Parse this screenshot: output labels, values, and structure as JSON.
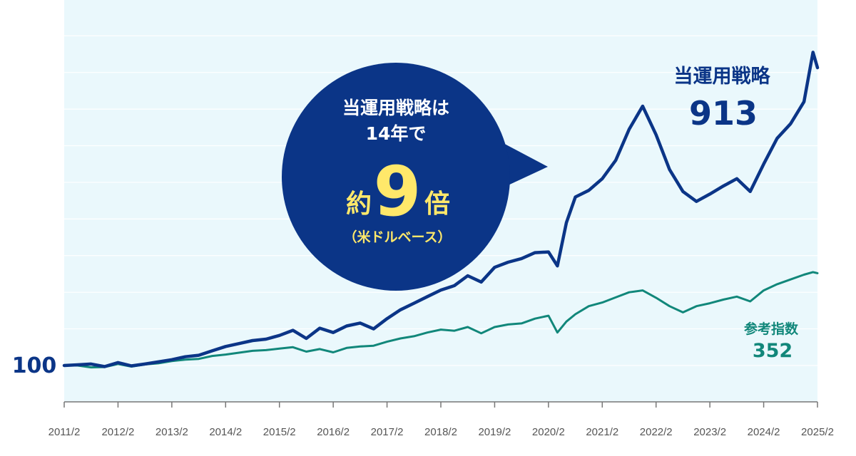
{
  "colors": {
    "background": "#ffffff",
    "plot_background": "#eaf8fc",
    "gridline": "#ffffff",
    "axis": "#777777",
    "strategy": "#0b3587",
    "index": "#11877a",
    "bubble": "#0b3587",
    "bubble_text": "#ffffff",
    "bubble_highlight": "#ffe86a"
  },
  "callout": {
    "line1": "当運用戦略は",
    "line2": "14年で",
    "prefix": "約",
    "number": "9",
    "suffix": "倍",
    "note": "（米ドルベース）"
  },
  "start_label": "100",
  "strategy_label": {
    "name": "当運用戦略",
    "value": "913"
  },
  "index_label": {
    "name": "参考指数",
    "value": "352"
  },
  "chart_data": {
    "type": "line",
    "x_tick_labels": [
      "2011/2",
      "2012/2",
      "2013/2",
      "2014/2",
      "2015/2",
      "2016/2",
      "2017/2",
      "2018/2",
      "2019/2",
      "2020/2",
      "2021/2",
      "2022/2",
      "2023/2",
      "2024/2",
      "2025/2"
    ],
    "xlim": [
      "2011/2",
      "2025/2"
    ],
    "ylim": [
      0,
      1000
    ],
    "y_ticks_labeled": false,
    "grid": true,
    "series": [
      {
        "name": "当運用戦略",
        "color": "#0b3587",
        "points": [
          [
            "2011/2",
            100
          ],
          [
            "2011/5",
            102
          ],
          [
            "2011/8",
            104
          ],
          [
            "2011/11",
            97
          ],
          [
            "2012/2",
            108
          ],
          [
            "2012/5",
            99
          ],
          [
            "2012/8",
            104
          ],
          [
            "2012/11",
            110
          ],
          [
            "2013/2",
            116
          ],
          [
            "2013/5",
            124
          ],
          [
            "2013/8",
            128
          ],
          [
            "2013/11",
            140
          ],
          [
            "2014/2",
            152
          ],
          [
            "2014/5",
            160
          ],
          [
            "2014/8",
            168
          ],
          [
            "2014/11",
            172
          ],
          [
            "2015/2",
            182
          ],
          [
            "2015/5",
            196
          ],
          [
            "2015/8",
            174
          ],
          [
            "2015/11",
            202
          ],
          [
            "2016/2",
            190
          ],
          [
            "2016/5",
            208
          ],
          [
            "2016/8",
            216
          ],
          [
            "2016/11",
            200
          ],
          [
            "2017/2",
            228
          ],
          [
            "2017/5",
            252
          ],
          [
            "2017/8",
            270
          ],
          [
            "2017/11",
            288
          ],
          [
            "2018/2",
            306
          ],
          [
            "2018/5",
            318
          ],
          [
            "2018/8",
            345
          ],
          [
            "2018/11",
            328
          ],
          [
            "2019/2",
            368
          ],
          [
            "2019/5",
            382
          ],
          [
            "2019/8",
            392
          ],
          [
            "2019/11",
            408
          ],
          [
            "2020/2",
            410
          ],
          [
            "2020/4",
            372
          ],
          [
            "2020/6",
            490
          ],
          [
            "2020/8",
            560
          ],
          [
            "2020/11",
            578
          ],
          [
            "2021/2",
            610
          ],
          [
            "2021/5",
            660
          ],
          [
            "2021/8",
            745
          ],
          [
            "2021/11",
            808
          ],
          [
            "2022/2",
            730
          ],
          [
            "2022/5",
            635
          ],
          [
            "2022/8",
            575
          ],
          [
            "2022/11",
            548
          ],
          [
            "2023/2",
            568
          ],
          [
            "2023/5",
            590
          ],
          [
            "2023/8",
            610
          ],
          [
            "2023/11",
            575
          ],
          [
            "2024/2",
            650
          ],
          [
            "2024/5",
            720
          ],
          [
            "2024/8",
            760
          ],
          [
            "2024/11",
            820
          ],
          [
            "2025/1",
            955
          ],
          [
            "2025/2",
            913
          ]
        ]
      },
      {
        "name": "参考指数",
        "color": "#11877a",
        "points": [
          [
            "2011/2",
            100
          ],
          [
            "2011/5",
            100
          ],
          [
            "2011/8",
            95
          ],
          [
            "2011/11",
            96
          ],
          [
            "2012/2",
            104
          ],
          [
            "2012/5",
            97
          ],
          [
            "2012/8",
            103
          ],
          [
            "2012/11",
            106
          ],
          [
            "2013/2",
            112
          ],
          [
            "2013/5",
            116
          ],
          [
            "2013/8",
            118
          ],
          [
            "2013/11",
            126
          ],
          [
            "2014/2",
            130
          ],
          [
            "2014/5",
            135
          ],
          [
            "2014/8",
            140
          ],
          [
            "2014/11",
            142
          ],
          [
            "2015/2",
            146
          ],
          [
            "2015/5",
            150
          ],
          [
            "2015/8",
            138
          ],
          [
            "2015/11",
            145
          ],
          [
            "2016/2",
            136
          ],
          [
            "2016/5",
            148
          ],
          [
            "2016/8",
            152
          ],
          [
            "2016/11",
            154
          ],
          [
            "2017/2",
            165
          ],
          [
            "2017/5",
            174
          ],
          [
            "2017/8",
            180
          ],
          [
            "2017/11",
            190
          ],
          [
            "2018/2",
            198
          ],
          [
            "2018/5",
            195
          ],
          [
            "2018/8",
            205
          ],
          [
            "2018/11",
            188
          ],
          [
            "2019/2",
            205
          ],
          [
            "2019/5",
            212
          ],
          [
            "2019/8",
            215
          ],
          [
            "2019/11",
            228
          ],
          [
            "2020/2",
            236
          ],
          [
            "2020/4",
            190
          ],
          [
            "2020/6",
            220
          ],
          [
            "2020/8",
            240
          ],
          [
            "2020/11",
            262
          ],
          [
            "2021/2",
            272
          ],
          [
            "2021/5",
            286
          ],
          [
            "2021/8",
            300
          ],
          [
            "2021/11",
            305
          ],
          [
            "2022/2",
            285
          ],
          [
            "2022/5",
            262
          ],
          [
            "2022/8",
            245
          ],
          [
            "2022/11",
            262
          ],
          [
            "2023/2",
            270
          ],
          [
            "2023/5",
            280
          ],
          [
            "2023/8",
            288
          ],
          [
            "2023/11",
            275
          ],
          [
            "2024/2",
            305
          ],
          [
            "2024/5",
            322
          ],
          [
            "2024/8",
            335
          ],
          [
            "2024/11",
            348
          ],
          [
            "2025/1",
            355
          ],
          [
            "2025/2",
            352
          ]
        ]
      }
    ]
  }
}
